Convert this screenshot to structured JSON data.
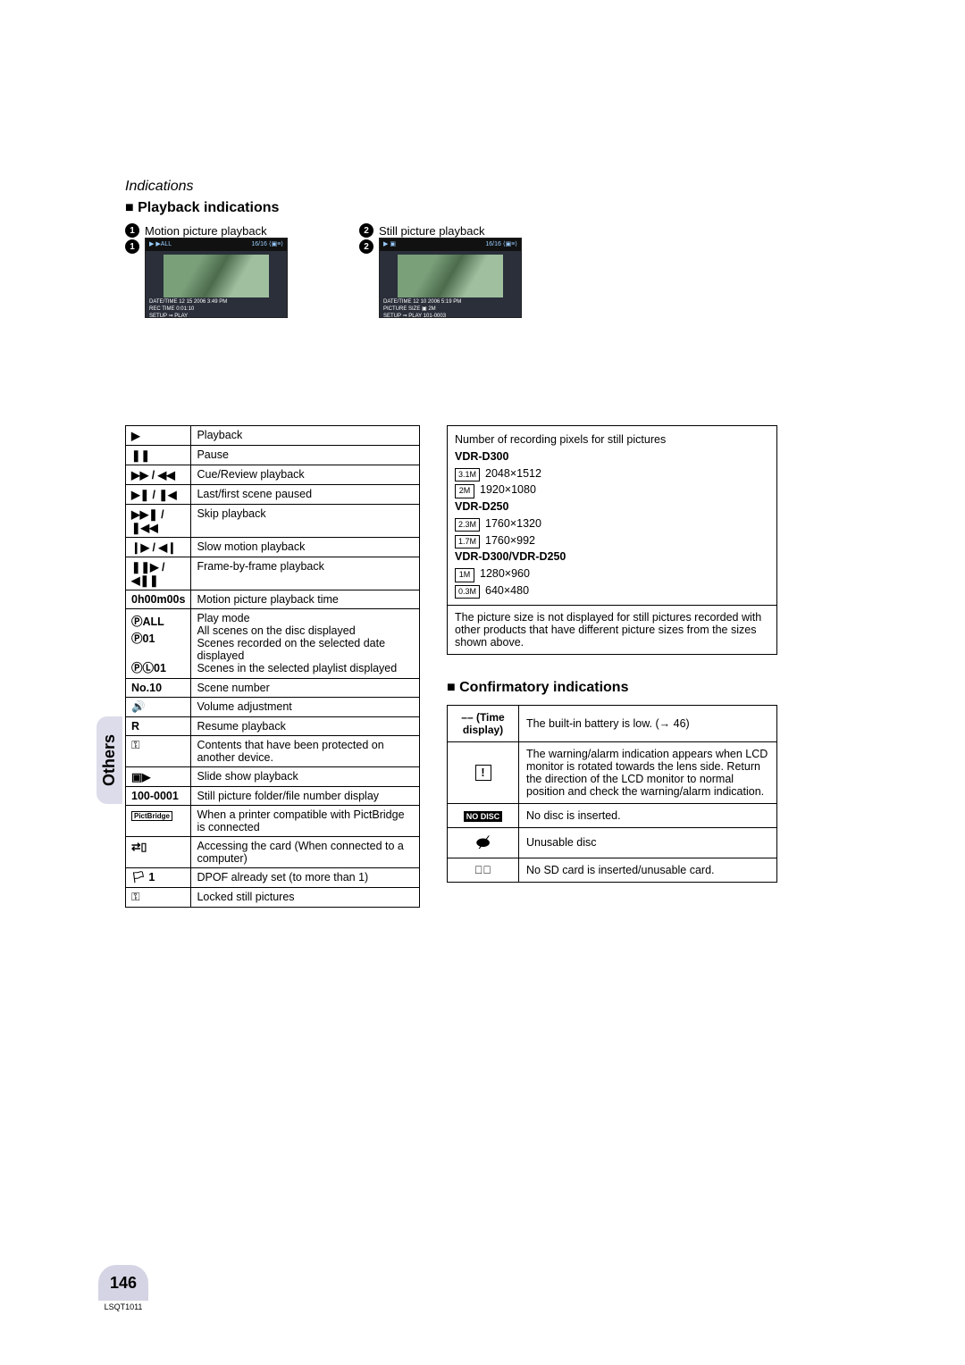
{
  "header": {
    "subtitle": "Indications",
    "playback_title": "Playback indications"
  },
  "thumbs": {
    "left_label": "Motion picture playback",
    "right_label": "Still picture playback",
    "left_strip_l": "▶   ▶ALL",
    "left_strip_r": "16/16  ⟨▣≡⟩",
    "left_foot": "DATE/TIME  12 15 2006   3:49 PM\nREC TIME 0:01:10\nSETUP  ⇒ PLAY",
    "right_strip_l": "▶   ▣",
    "right_strip_r": "16/16  ⟨▣≡⟩",
    "right_foot": "DATE/TIME  12 10 2006   5:19 PM\nPICTURE SIZE  ▣ 2M\nSETUP  ⇒ PLAY            101-0003"
  },
  "playback_table": [
    {
      "sym": "▶",
      "desc": "Playback"
    },
    {
      "sym": "❚❚",
      "desc": "Pause"
    },
    {
      "sym": "▶▶ / ◀◀",
      "desc": "Cue/Review playback"
    },
    {
      "sym": "▶❚ / ❚◀",
      "desc": "Last/first scene paused"
    },
    {
      "sym": "▶▶❚ / ❚◀◀",
      "desc": "Skip playback"
    },
    {
      "sym": "❙▶ / ◀❙",
      "desc": "Slow motion playback"
    },
    {
      "sym": "❚❚▶ / ◀❚❚",
      "desc": "Frame-by-frame playback"
    },
    {
      "sym": "0h00m00s",
      "desc": "Motion picture playback time"
    },
    {
      "sym": "ⓅALL\nⓅ01\n\nⓅⓁ01",
      "desc": "Play mode\nAll scenes on the disc displayed\nScenes recorded on the selected date displayed\nScenes in the selected playlist displayed"
    },
    {
      "sym": "No.10",
      "desc": "Scene number"
    },
    {
      "sym": "🔊",
      "desc": "Volume adjustment"
    },
    {
      "sym": "R",
      "desc": "Resume playback"
    },
    {
      "sym": "🔑",
      "desc": "Contents that have been protected on another device."
    },
    {
      "sym": "▣▶",
      "desc": "Slide show playback"
    },
    {
      "sym": "100-0001",
      "desc": "Still picture folder/file number display"
    },
    {
      "sym": "PictBridge",
      "desc": "When a printer compatible with PictBridge is connected"
    },
    {
      "sym": "⇄▯",
      "desc": "Accessing the card (When connected to a computer)"
    },
    {
      "sym": "🏳 1",
      "desc": "DPOF already set (to more than 1)"
    },
    {
      "sym": "🔑",
      "desc": "Locked still pictures"
    }
  ],
  "pixel_box": {
    "intro": "Number of recording pixels for still pictures",
    "model1": "VDR-D300",
    "res1a": "2048×1512",
    "res1b": "1920×1080",
    "model2": "VDR-D250",
    "res2a": "1760×1320",
    "res2b": "1760×992",
    "model3": "VDR-D300/VDR-D250",
    "res3a": "1280×960",
    "res3b": "640×480",
    "badges": {
      "b1": "3.1M",
      "b2": "2M",
      "b3": "2.3M",
      "b4": "1.7M",
      "b5": "1M",
      "b6": "0.3M"
    },
    "note": "The picture size is not displayed for still pictures recorded with other products that have different picture sizes from the sizes shown above."
  },
  "confirm_title": "Confirmatory indications",
  "confirm_table": [
    {
      "sym": "–– (Time display)",
      "desc": "The built-in battery is low. (→ 46)"
    },
    {
      "sym": "❚!❚",
      "desc": "The warning/alarm indication appears when LCD monitor is rotated towards the lens side. Return the direction of the LCD monitor to normal position and check the warning/alarm indication."
    },
    {
      "sym": "NO DISC",
      "desc": "No disc is inserted."
    },
    {
      "sym": "👁‍🗨",
      "desc": "Unusable disc"
    },
    {
      "sym": "▯⃠",
      "desc": "No SD card is inserted/unusable card."
    }
  ],
  "sidebar": {
    "tab": "Others"
  },
  "footer": {
    "page": "146",
    "code": "LSQT1011"
  }
}
